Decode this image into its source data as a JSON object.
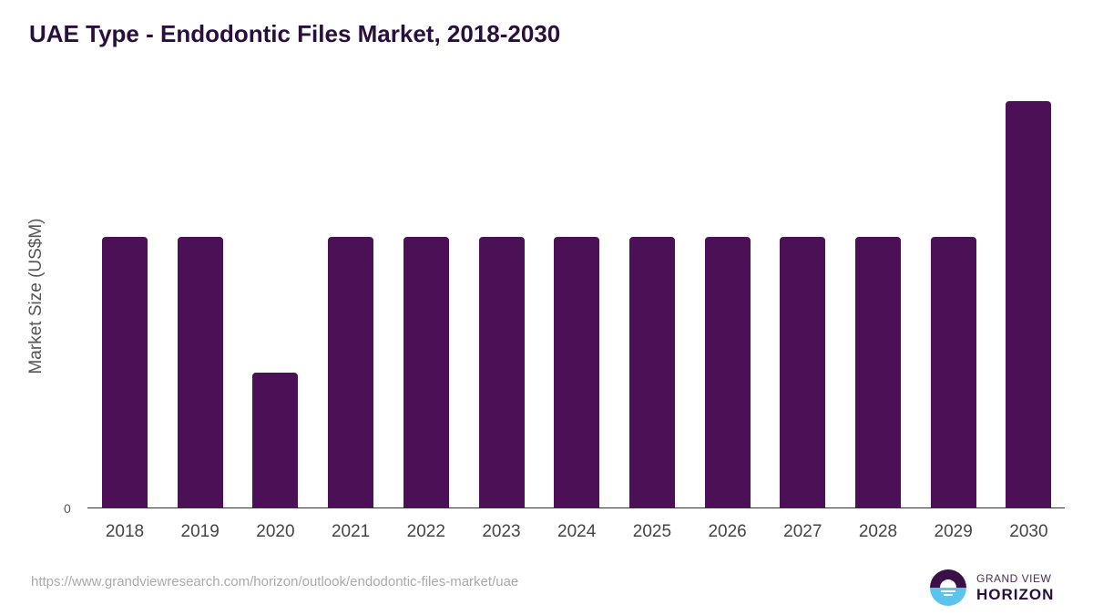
{
  "chart_data": {
    "type": "bar",
    "title": "UAE Type - Endodontic Files Market, 2018-2030",
    "xlabel": "",
    "ylabel": "Market Size (US$M)",
    "categories": [
      "2018",
      "2019",
      "2020",
      "2021",
      "2022",
      "2023",
      "2024",
      "2025",
      "2026",
      "2027",
      "2028",
      "2029",
      "2030"
    ],
    "values": [
      0.2,
      0.2,
      0.1,
      0.2,
      0.2,
      0.2,
      0.2,
      0.2,
      0.2,
      0.2,
      0.2,
      0.2,
      0.3
    ],
    "y_tick_labels": [
      "0"
    ],
    "grid": false,
    "bar_color": "#4b1055"
  },
  "footer": {
    "source_url": "https://www.grandviewresearch.com/horizon/outlook/endodontic-files-market/uae",
    "logo_line1": "GRAND VIEW",
    "logo_line2": "HORIZON"
  }
}
